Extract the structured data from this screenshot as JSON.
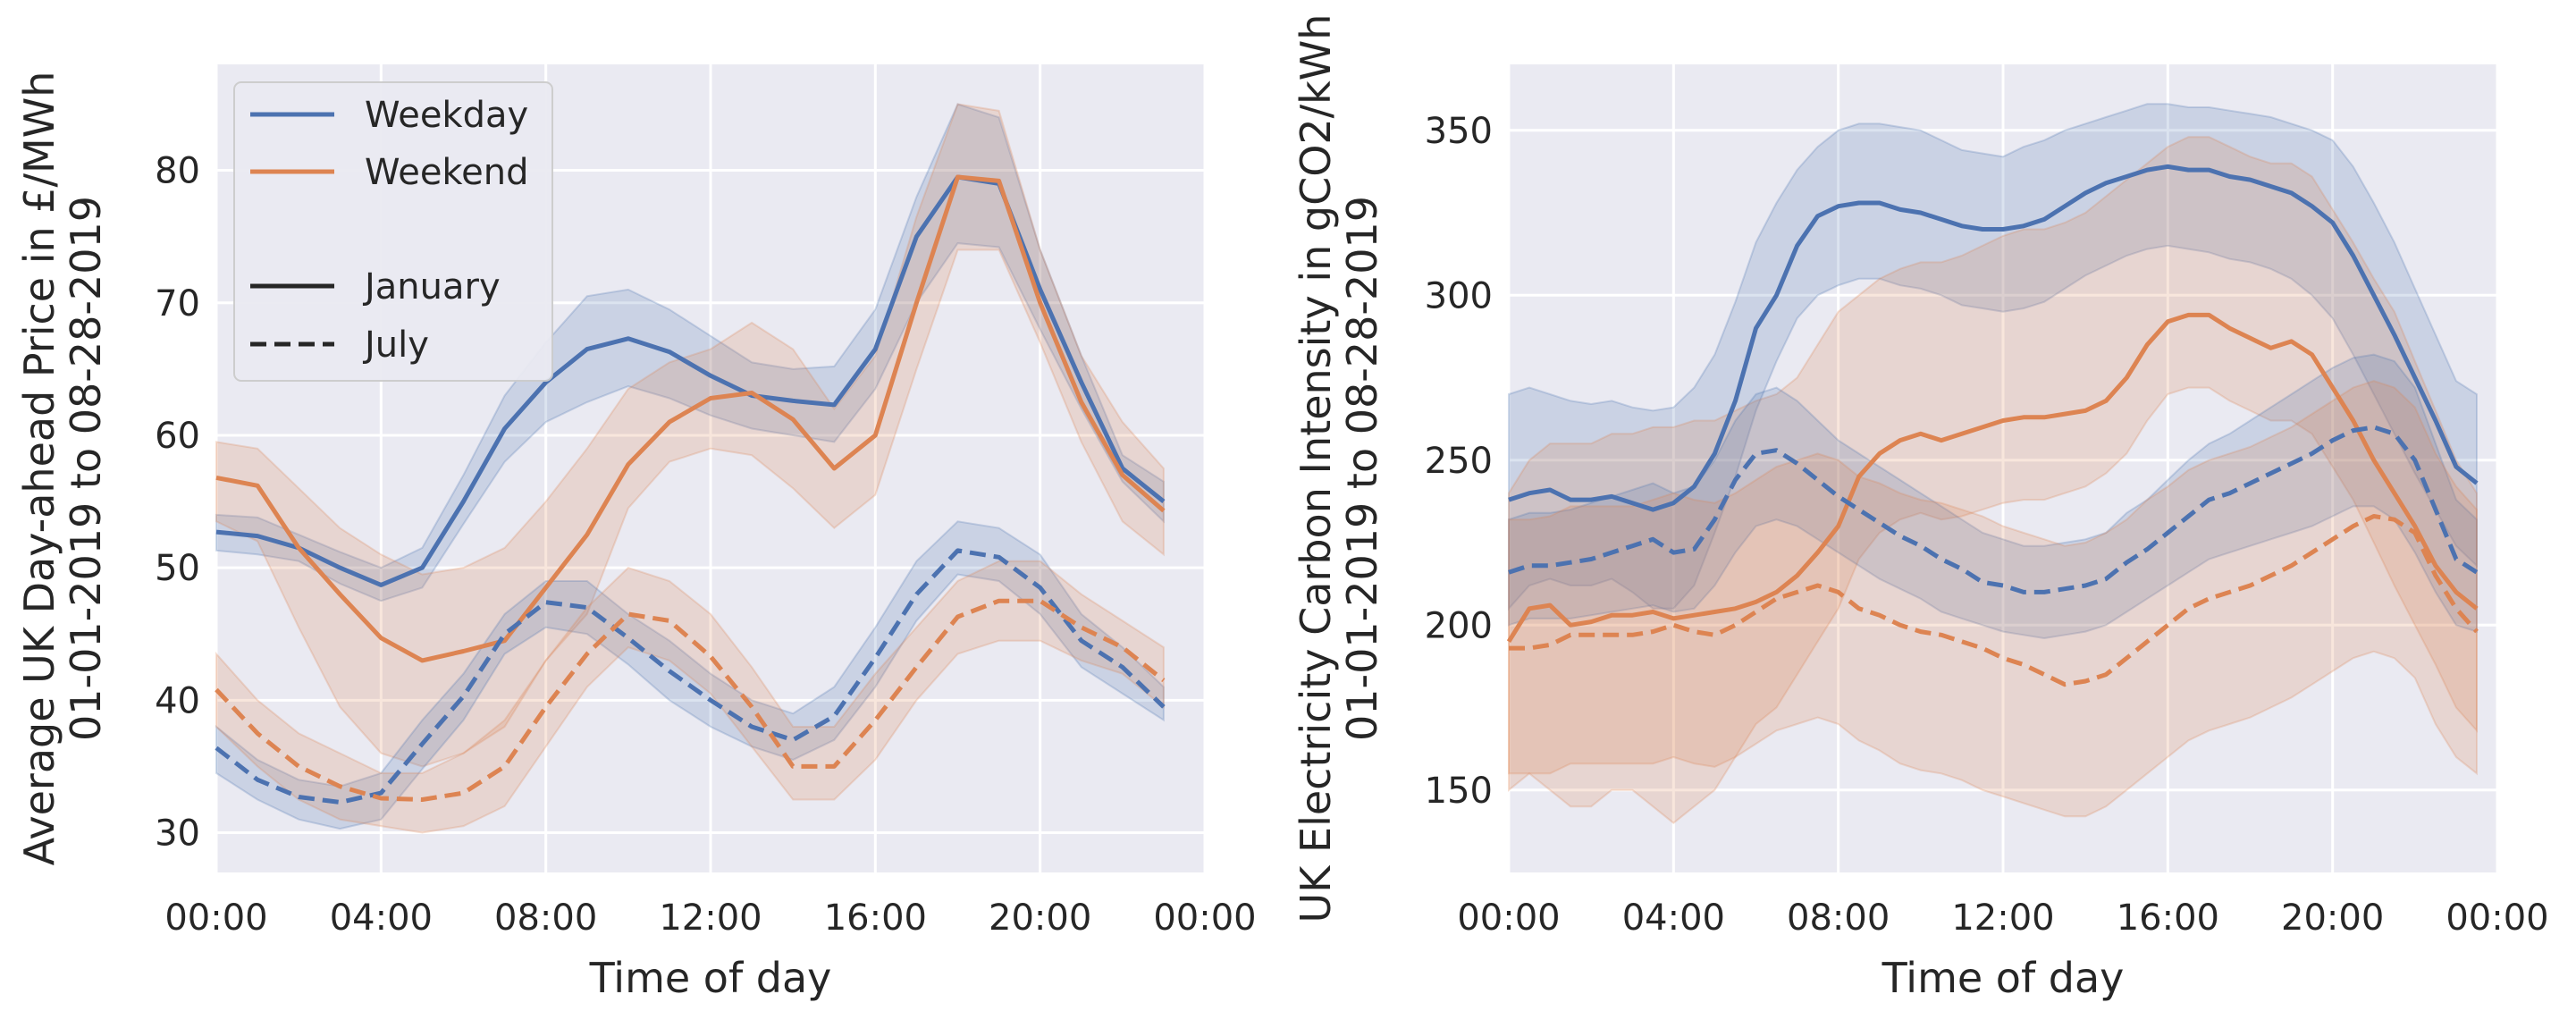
{
  "colors": {
    "weekday": "#4c72b0",
    "weekend": "#dd8452",
    "panel_bg": "#eaeaf2",
    "grid": "#ffffff"
  },
  "chart_data": [
    {
      "type": "line",
      "xlabel": "Time of day",
      "ylabel_lines": [
        "Average UK Day-ahead Price in £/MWh",
        "01-01-2019 to 08-28-2019"
      ],
      "xlim": [
        0,
        24
      ],
      "ylim": [
        27,
        88
      ],
      "x_ticks": [
        0,
        4,
        8,
        12,
        16,
        20,
        24
      ],
      "x_tick_labels": [
        "00:00",
        "04:00",
        "08:00",
        "12:00",
        "16:00",
        "20:00",
        "00:00"
      ],
      "y_ticks": [
        30,
        40,
        50,
        60,
        70,
        80
      ],
      "y_tick_labels": [
        "30",
        "40",
        "50",
        "60",
        "70",
        "80"
      ],
      "grid": true,
      "legend": {
        "placement": "top-left",
        "entries": [
          {
            "label": "Weekday",
            "kind": "color",
            "color": "#4c72b0"
          },
          {
            "label": "Weekend",
            "kind": "color",
            "color": "#dd8452"
          },
          {
            "label": "",
            "kind": "spacer"
          },
          {
            "label": "January",
            "kind": "solid"
          },
          {
            "label": "July",
            "kind": "dashed"
          }
        ]
      },
      "x": [
        0,
        1,
        2,
        3,
        4,
        5,
        6,
        7,
        8,
        9,
        10,
        11,
        12,
        13,
        14,
        15,
        16,
        17,
        18,
        19,
        20,
        21,
        22,
        23
      ],
      "series": [
        {
          "group": "Weekday",
          "month": "January",
          "style": "solid",
          "color": "#4c72b0",
          "values": [
            52.7,
            52.4,
            51.5,
            50,
            48.7,
            50,
            55,
            60.5,
            64,
            66.5,
            67.3,
            66.3,
            64.5,
            63,
            62.6,
            62.3,
            66.5,
            75,
            79.5,
            79,
            71,
            64,
            57.5,
            55
          ],
          "lower": [
            51.3,
            51,
            50.5,
            48.8,
            47.5,
            48.5,
            53.3,
            58,
            61,
            62.5,
            63.7,
            62.8,
            61.5,
            60.5,
            60,
            59.5,
            63.5,
            70,
            74.5,
            74.2,
            68,
            62,
            56.5,
            53.5
          ],
          "upper": [
            54,
            53.8,
            52.5,
            51.2,
            50,
            51.5,
            57,
            63,
            67,
            70.5,
            71,
            69.5,
            67.5,
            65.5,
            65,
            65.2,
            69.5,
            78,
            85,
            84,
            74,
            66,
            58.5,
            56.5
          ]
        },
        {
          "group": "Weekend",
          "month": "January",
          "style": "solid",
          "color": "#dd8452",
          "values": [
            56.8,
            56.2,
            51.5,
            48,
            44.7,
            43,
            43.7,
            44.5,
            48.5,
            52.5,
            57.8,
            61,
            62.8,
            63.2,
            61.2,
            57.5,
            60,
            70,
            79.5,
            79.2,
            70,
            62.5,
            57,
            54.3
          ],
          "lower": [
            53.5,
            52,
            45.5,
            39.5,
            36,
            35,
            36,
            38,
            43,
            46.5,
            54.5,
            58,
            59,
            58.5,
            56,
            53,
            55.5,
            65,
            74,
            74,
            67,
            59.5,
            53.5,
            51
          ],
          "upper": [
            59.5,
            59,
            56,
            53,
            51,
            49.5,
            50,
            51.5,
            55,
            59,
            63.5,
            65.5,
            66.5,
            68.5,
            66.5,
            62,
            66,
            76.5,
            85,
            84.5,
            74,
            66,
            61,
            57.5
          ]
        },
        {
          "group": "Weekday",
          "month": "July",
          "style": "dashed",
          "color": "#4c72b0",
          "values": [
            36.4,
            34,
            32.7,
            32.3,
            33,
            36.7,
            40.3,
            45,
            47.4,
            47,
            44.7,
            42.2,
            40,
            38,
            37,
            38.8,
            43.2,
            48,
            51.3,
            50.8,
            48.5,
            44.5,
            42.5,
            39.5
          ],
          "lower": [
            34.5,
            32.5,
            31,
            30.3,
            31,
            34.8,
            38.5,
            43.5,
            45.5,
            45,
            42.7,
            40,
            38,
            36.5,
            35.5,
            37,
            41,
            46,
            49.5,
            49,
            46.5,
            42.5,
            40.5,
            38.5
          ],
          "upper": [
            38,
            35.5,
            34,
            33.5,
            34.5,
            38.5,
            42,
            46.5,
            49,
            49,
            46.5,
            44.5,
            42,
            40,
            39,
            41,
            45.5,
            50.5,
            53.5,
            53,
            51,
            46.5,
            44,
            41
          ]
        },
        {
          "group": "Weekend",
          "month": "July",
          "style": "dashed",
          "color": "#dd8452",
          "values": [
            40.8,
            37.5,
            35,
            33.5,
            32.6,
            32.5,
            33,
            35,
            39.5,
            43.5,
            46.5,
            46,
            43.3,
            39.5,
            35,
            35,
            38.5,
            42.5,
            46.3,
            47.5,
            47.5,
            45.5,
            44,
            41.5
          ],
          "lower": [
            38,
            35,
            32.5,
            31,
            30.5,
            30,
            30.5,
            32,
            36.5,
            41,
            44,
            43,
            40.5,
            36.5,
            32.5,
            32.5,
            35.5,
            40,
            43.5,
            44.5,
            44.5,
            43,
            42,
            39.5
          ],
          "upper": [
            43.5,
            40,
            37.5,
            36,
            34.5,
            34.5,
            36,
            38.5,
            43,
            47,
            50,
            49,
            46.5,
            42.5,
            38,
            38,
            42,
            45.5,
            49,
            50.5,
            50.5,
            48,
            46,
            44
          ]
        }
      ]
    },
    {
      "type": "line",
      "xlabel": "Time of day",
      "ylabel_lines": [
        "UK Electricity Carbon Intensity in gCO2/kWh",
        "01-01-2019 to 08-28-2019"
      ],
      "xlim": [
        0,
        24
      ],
      "ylim": [
        125,
        370
      ],
      "x_ticks": [
        0,
        4,
        8,
        12,
        16,
        20,
        24
      ],
      "x_tick_labels": [
        "00:00",
        "04:00",
        "08:00",
        "12:00",
        "16:00",
        "20:00",
        "00:00"
      ],
      "y_ticks": [
        150,
        200,
        250,
        300,
        350
      ],
      "y_tick_labels": [
        "150",
        "200",
        "250",
        "300",
        "350"
      ],
      "grid": true,
      "x": [
        0,
        0.5,
        1,
        1.5,
        2,
        2.5,
        3,
        3.5,
        4,
        4.5,
        5,
        5.5,
        6,
        6.5,
        7,
        7.5,
        8,
        8.5,
        9,
        9.5,
        10,
        10.5,
        11,
        11.5,
        12,
        12.5,
        13,
        13.5,
        14,
        14.5,
        15,
        15.5,
        16,
        16.5,
        17,
        17.5,
        18,
        18.5,
        19,
        19.5,
        20,
        20.5,
        21,
        21.5,
        22,
        22.5,
        23,
        23.5
      ],
      "series": [
        {
          "group": "Weekday",
          "month": "January",
          "style": "solid",
          "color": "#4c72b0",
          "values": [
            238,
            240,
            241,
            238,
            238,
            239,
            237,
            235,
            237,
            242,
            252,
            268,
            290,
            300,
            315,
            324,
            327,
            328,
            328,
            326,
            325,
            323,
            321,
            320,
            320,
            321,
            323,
            327,
            331,
            334,
            336,
            338,
            339,
            338,
            338,
            336,
            335,
            333,
            331,
            327,
            322,
            312,
            300,
            288,
            275,
            262,
            248,
            243
          ],
          "lower": [
            205,
            212,
            214,
            212,
            212,
            214,
            210,
            205,
            205,
            212,
            228,
            245,
            265,
            280,
            293,
            300,
            303,
            305,
            305,
            303,
            302,
            300,
            297,
            296,
            295,
            296,
            298,
            302,
            306,
            309,
            312,
            314,
            315,
            314,
            313,
            311,
            310,
            308,
            305,
            300,
            293,
            282,
            270,
            258,
            246,
            235,
            224,
            218
          ],
          "upper": [
            270,
            272,
            270,
            268,
            267,
            268,
            266,
            265,
            266,
            272,
            282,
            298,
            316,
            328,
            338,
            345,
            350,
            352,
            352,
            351,
            350,
            347,
            344,
            343,
            342,
            345,
            347,
            350,
            352,
            354,
            356,
            358,
            358,
            357,
            357,
            356,
            355,
            354,
            352,
            350,
            347,
            339,
            328,
            316,
            302,
            288,
            274,
            270
          ]
        },
        {
          "group": "Weekend",
          "month": "January",
          "style": "solid",
          "color": "#dd8452",
          "values": [
            195,
            205,
            206,
            200,
            201,
            203,
            203,
            204,
            202,
            203,
            204,
            205,
            207,
            210,
            215,
            222,
            230,
            245,
            252,
            256,
            258,
            256,
            258,
            260,
            262,
            263,
            263,
            264,
            265,
            268,
            275,
            285,
            292,
            294,
            294,
            290,
            287,
            284,
            286,
            282,
            272,
            262,
            250,
            240,
            230,
            218,
            210,
            205
          ],
          "lower": [
            150,
            155,
            150,
            145,
            145,
            150,
            150,
            145,
            140,
            145,
            150,
            160,
            170,
            175,
            185,
            195,
            205,
            220,
            228,
            232,
            234,
            232,
            233,
            235,
            237,
            238,
            238,
            240,
            242,
            246,
            252,
            262,
            270,
            272,
            272,
            268,
            265,
            262,
            262,
            258,
            248,
            238,
            225,
            212,
            200,
            188,
            175,
            168
          ],
          "upper": [
            240,
            250,
            255,
            255,
            255,
            258,
            258,
            260,
            260,
            262,
            262,
            265,
            268,
            270,
            275,
            285,
            295,
            300,
            305,
            308,
            310,
            310,
            312,
            315,
            318,
            320,
            320,
            322,
            325,
            330,
            335,
            340,
            345,
            348,
            348,
            345,
            342,
            340,
            340,
            336,
            326,
            316,
            305,
            295,
            280,
            265,
            250,
            240
          ]
        },
        {
          "group": "Weekday",
          "month": "July",
          "style": "dashed",
          "color": "#4c72b0",
          "values": [
            216,
            218,
            218,
            219,
            220,
            222,
            224,
            226,
            222,
            223,
            232,
            244,
            252,
            253,
            249,
            244,
            239,
            235,
            231,
            227,
            224,
            220,
            217,
            213,
            212,
            210,
            210,
            211,
            212,
            214,
            219,
            223,
            228,
            233,
            238,
            240,
            243,
            246,
            249,
            252,
            256,
            259,
            260,
            258,
            250,
            235,
            220,
            216
          ],
          "lower": [
            200,
            202,
            202,
            202,
            203,
            204,
            205,
            206,
            204,
            205,
            212,
            222,
            230,
            232,
            230,
            226,
            222,
            218,
            214,
            211,
            208,
            204,
            202,
            200,
            198,
            197,
            196,
            197,
            198,
            200,
            204,
            208,
            212,
            216,
            220,
            222,
            224,
            226,
            228,
            230,
            233,
            236,
            236,
            232,
            222,
            210,
            200,
            198
          ],
          "upper": [
            232,
            234,
            234,
            235,
            237,
            239,
            241,
            243,
            240,
            242,
            250,
            262,
            270,
            272,
            268,
            262,
            256,
            252,
            248,
            244,
            240,
            236,
            232,
            228,
            226,
            224,
            224,
            225,
            226,
            228,
            234,
            238,
            244,
            250,
            255,
            258,
            262,
            266,
            270,
            274,
            278,
            281,
            282,
            280,
            272,
            255,
            238,
            232
          ]
        },
        {
          "group": "Weekend",
          "month": "July",
          "style": "dashed",
          "color": "#dd8452",
          "values": [
            193,
            193,
            194,
            197,
            197,
            197,
            197,
            198,
            200,
            198,
            197,
            200,
            204,
            208,
            210,
            212,
            210,
            205,
            203,
            200,
            198,
            197,
            195,
            193,
            190,
            188,
            185,
            182,
            183,
            185,
            190,
            195,
            200,
            205,
            208,
            210,
            212,
            215,
            218,
            222,
            226,
            230,
            233,
            232,
            228,
            215,
            205,
            198
          ],
          "lower": [
            155,
            155,
            155,
            158,
            158,
            158,
            158,
            158,
            160,
            158,
            157,
            160,
            164,
            168,
            170,
            172,
            170,
            165,
            162,
            158,
            156,
            155,
            153,
            150,
            148,
            146,
            144,
            142,
            142,
            145,
            150,
            155,
            160,
            165,
            168,
            170,
            172,
            175,
            178,
            182,
            186,
            190,
            192,
            190,
            184,
            170,
            160,
            155
          ],
          "upper": [
            232,
            232,
            233,
            236,
            236,
            236,
            236,
            238,
            240,
            238,
            237,
            240,
            244,
            248,
            250,
            252,
            250,
            245,
            243,
            240,
            238,
            237,
            235,
            233,
            230,
            228,
            226,
            224,
            225,
            228,
            232,
            238,
            242,
            247,
            250,
            252,
            254,
            257,
            260,
            264,
            268,
            272,
            274,
            272,
            266,
            252,
            242,
            235
          ]
        }
      ]
    }
  ]
}
